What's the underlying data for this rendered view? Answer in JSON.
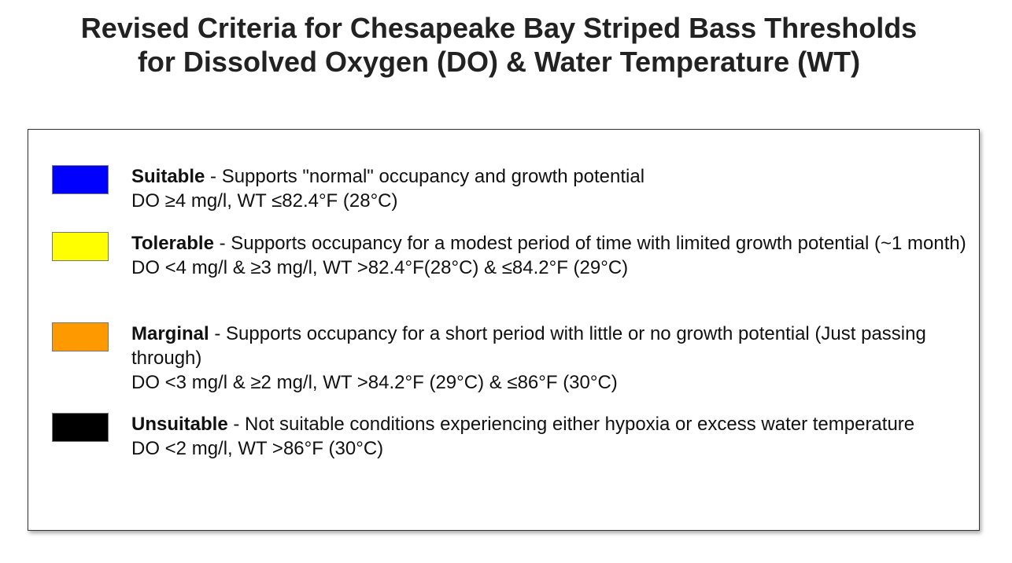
{
  "title": {
    "line1": "Revised Criteria for Chesapeake Bay Striped Bass Thresholds",
    "line2": "for Dissolved Oxygen (DO) & Water Temperature (WT)"
  },
  "legend": [
    {
      "name": "Suitable",
      "color": "#0000FF",
      "description": " - Supports \"normal\" occupancy and growth potential",
      "criteria": "DO ≥4 mg/l, WT ≤82.4°F (28°C)"
    },
    {
      "name": "Tolerable",
      "color": "#FFFF00",
      "description": " - Supports occupancy for a modest period of time with limited growth potential (~1 month)",
      "criteria": "DO <4 mg/l & ≥3 mg/l, WT >82.4°F(28°C) & ≤84.2°F (29°C)"
    },
    {
      "name": "Marginal",
      "color": "#FF9900",
      "description": " - Supports occupancy for a short period with little or no growth potential (Just passing through)",
      "criteria": "DO <3 mg/l & ≥2 mg/l, WT >84.2°F (29°C) & ≤86°F (30°C)"
    },
    {
      "name": "Unsuitable",
      "color": "#000000",
      "description": " - Not suitable conditions experiencing either hypoxia or excess water temperature",
      "criteria": "DO <2 mg/l, WT >86°F (30°C)"
    }
  ]
}
